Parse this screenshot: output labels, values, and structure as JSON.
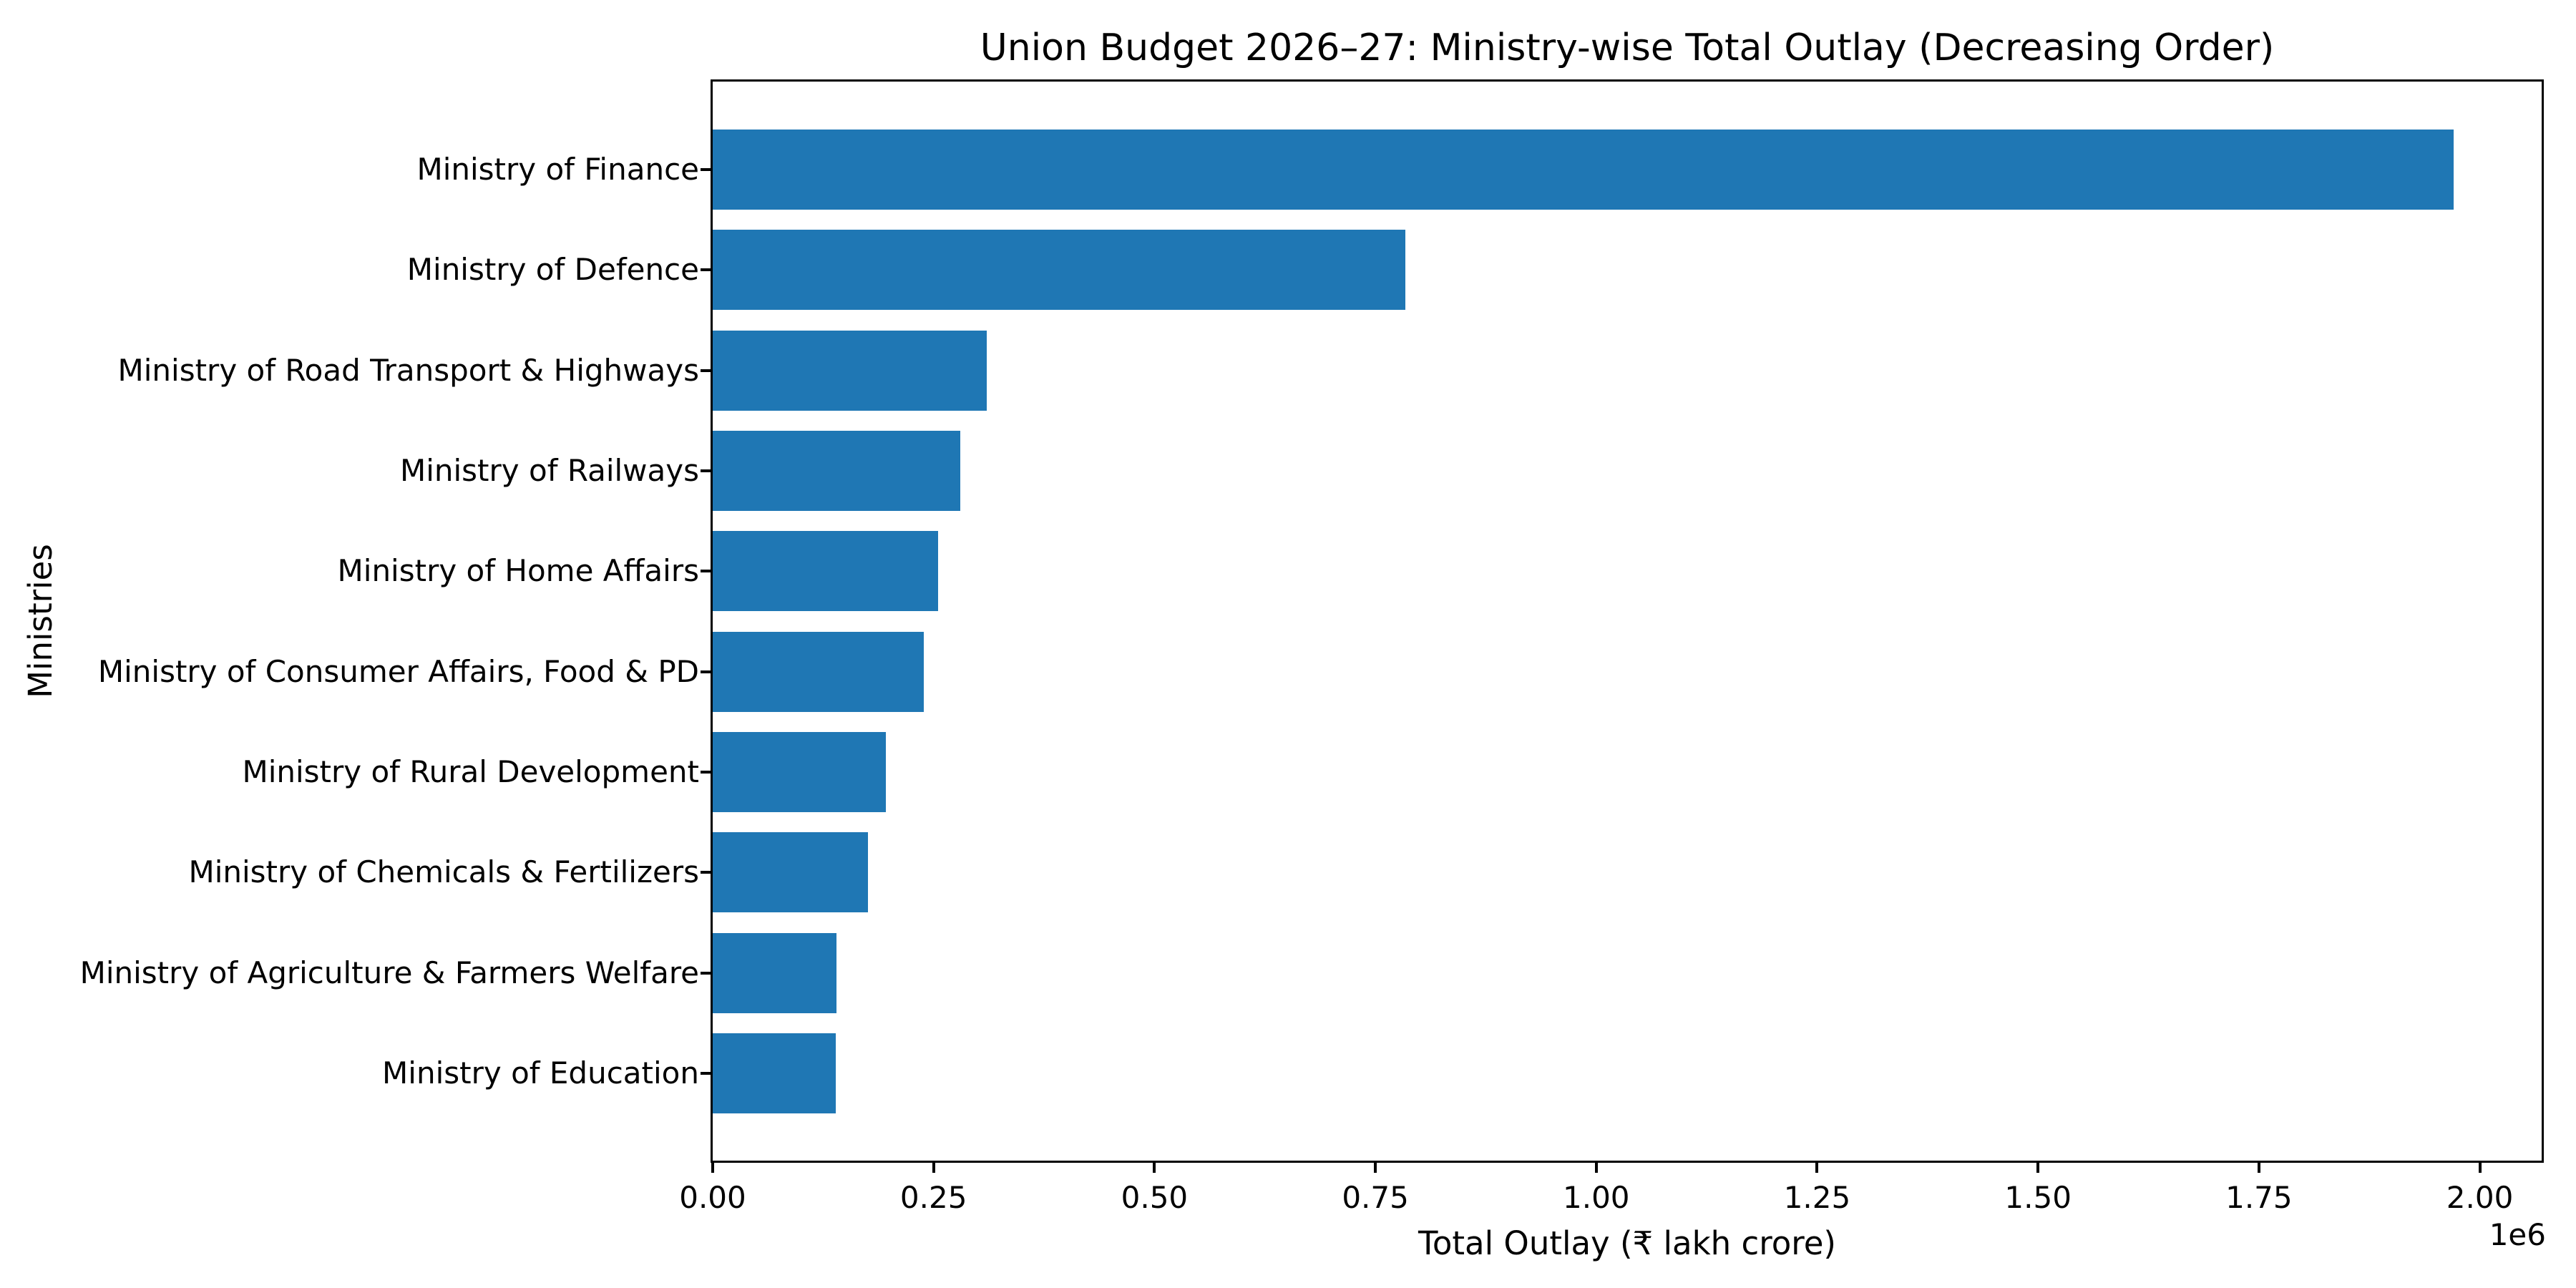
{
  "figure": {
    "background_color": "#ffffff",
    "text_color": "#000000"
  },
  "chart_data": {
    "type": "bar",
    "orientation": "horizontal",
    "title": "Union Budget 2026–27: Ministry-wise Total Outlay (Decreasing Order)",
    "xlabel": "Total Outlay (₹ lakh crore)",
    "ylabel": "Ministries",
    "offset_text": "1e6",
    "bar_color": "#1f77b4",
    "grid": false,
    "legend_position": "none",
    "xlim": [
      0,
      2070000
    ],
    "x_ticks": [
      0,
      250000,
      500000,
      750000,
      1000000,
      1250000,
      1500000,
      1750000,
      2000000
    ],
    "x_tick_labels": [
      "0.00",
      "0.25",
      "0.50",
      "0.75",
      "1.00",
      "1.25",
      "1.50",
      "1.75",
      "2.00"
    ],
    "categories": [
      "Ministry of Finance",
      "Ministry of Defence",
      "Ministry of Road Transport & Highways",
      "Ministry of Railways",
      "Ministry of Home Affairs",
      "Ministry of Consumer Affairs, Food & PD",
      "Ministry of Rural Development",
      "Ministry of Chemicals & Fertilizers",
      "Ministry of Agriculture & Farmers Welfare",
      "Ministry of Education"
    ],
    "values": [
      1970000,
      784000,
      310000,
      280000,
      255000,
      239000,
      196000,
      176000,
      140000,
      139000
    ]
  }
}
